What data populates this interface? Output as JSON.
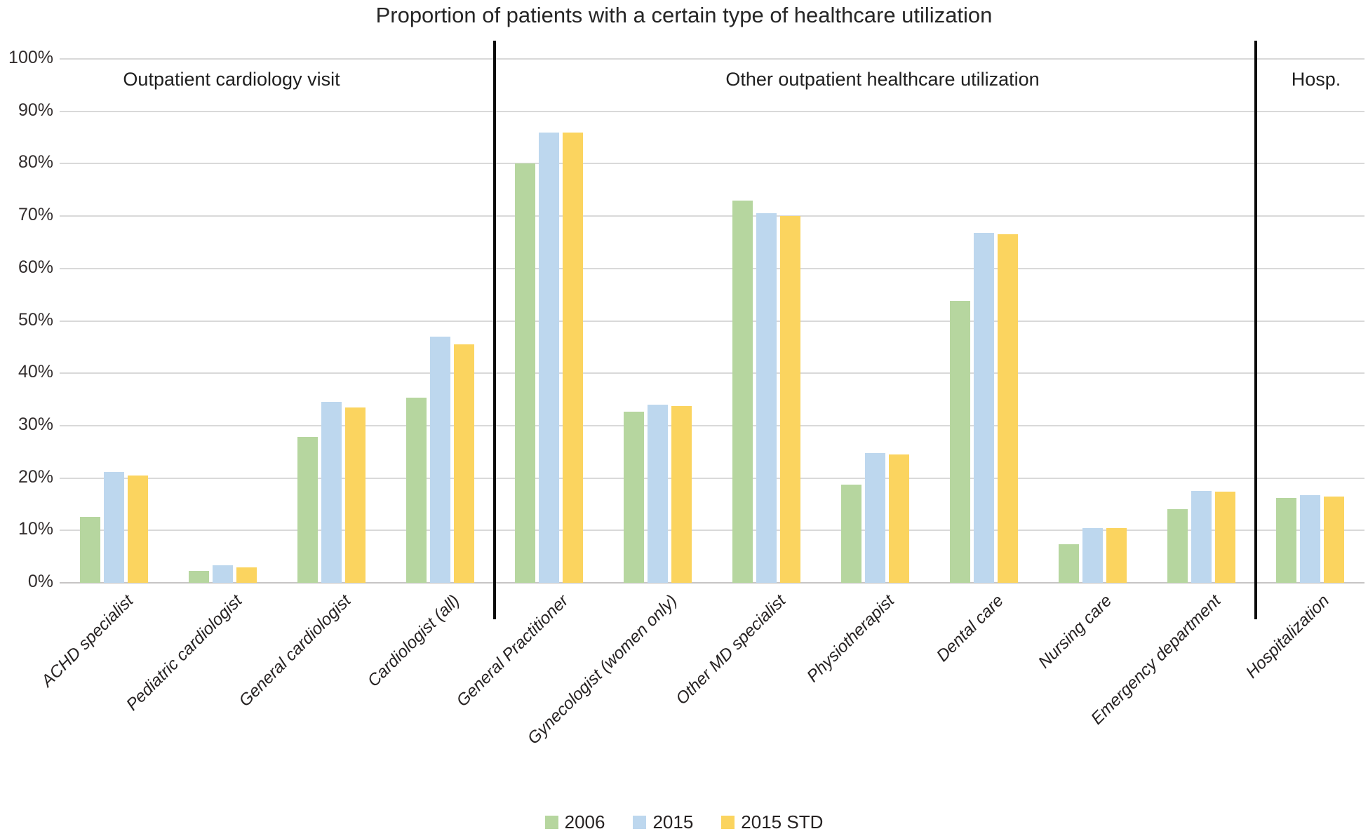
{
  "title": "Proportion of patients with a certain type of healthcare utilization",
  "sections": [
    {
      "label": "Outpatient cardiology visit",
      "from_category": 0,
      "to_category": 3
    },
    {
      "label": "Other outpatient healthcare utilization",
      "from_category": 4,
      "to_category": 10
    },
    {
      "label": "Hosp.",
      "from_category": 11,
      "to_category": 11
    }
  ],
  "legend": [
    {
      "label": "2006",
      "color": "#b6d69f"
    },
    {
      "label": "2015",
      "color": "#bdd7ee"
    },
    {
      "label": "2015 STD",
      "color": "#fbd45f"
    }
  ],
  "chart_data": {
    "type": "bar",
    "title": "Proportion of patients with a certain type of healthcare utilization",
    "categories": [
      "ACHD specialist",
      "Pediatric cardiologist",
      "General cardiologist",
      "Cardiologist (all)",
      "General Practitioner",
      "Gynecologist (women only)",
      "Other MD specialist",
      "Physiotherapist",
      "Dental care",
      "Nursing care",
      "Emergency department",
      "Hospitalization"
    ],
    "series": [
      {
        "name": "2006",
        "color": "#b6d69f",
        "values": [
          12.6,
          2.3,
          27.8,
          35.4,
          80.0,
          32.6,
          73.0,
          18.8,
          53.8,
          7.3,
          14.0,
          16.2
        ]
      },
      {
        "name": "2015",
        "color": "#bdd7ee",
        "values": [
          21.2,
          3.3,
          34.5,
          47.0,
          86.0,
          34.0,
          70.5,
          24.8,
          66.8,
          10.5,
          17.5,
          16.8
        ]
      },
      {
        "name": "2015 STD",
        "color": "#fbd45f",
        "values": [
          20.5,
          3.0,
          33.5,
          45.5,
          86.0,
          33.7,
          70.0,
          24.5,
          66.5,
          10.4,
          17.4,
          16.5
        ]
      }
    ],
    "xlabel": "",
    "ylabel": "",
    "ylim": [
      0,
      100
    ],
    "ytick_step": 10,
    "ytick_labels": [
      "0%",
      "10%",
      "20%",
      "30%",
      "40%",
      "50%",
      "60%",
      "70%",
      "80%",
      "90%",
      "100%"
    ],
    "grid": true,
    "legend_position": "bottom",
    "group_separators_after_category": [
      3,
      10
    ]
  }
}
